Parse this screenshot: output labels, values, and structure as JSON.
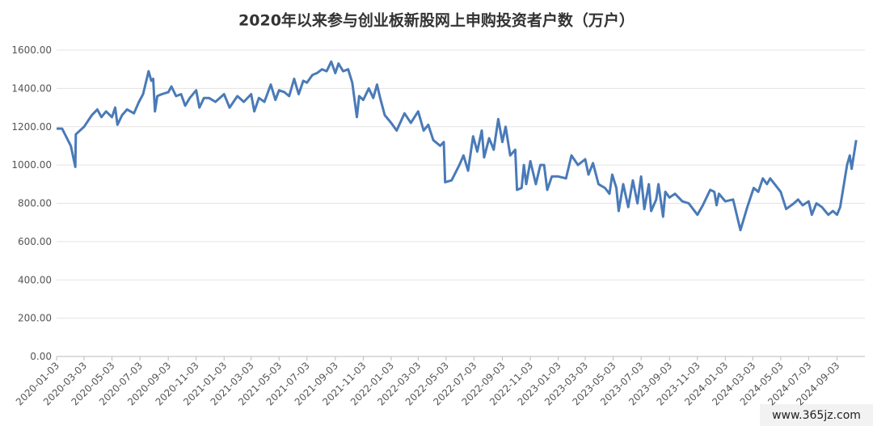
{
  "chart_data": {
    "type": "line",
    "title": "2020年以来参与创业板新股网上申购投资者户数（万户）",
    "watermark": "www.365jz.com",
    "color": "#4a7ab8",
    "x": [
      "2020-01-03",
      "2020-01-15",
      "2020-02-03",
      "2020-02-13",
      "2020-02-14",
      "2020-03-03",
      "2020-03-20",
      "2020-04-01",
      "2020-04-10",
      "2020-04-20",
      "2020-05-03",
      "2020-05-10",
      "2020-05-15",
      "2020-05-25",
      "2020-06-05",
      "2020-06-20",
      "2020-07-01",
      "2020-07-10",
      "2020-07-20",
      "2020-07-22",
      "2020-07-28",
      "2020-08-01",
      "2020-08-05",
      "2020-08-10",
      "2020-08-20",
      "2020-09-03",
      "2020-09-10",
      "2020-09-20",
      "2020-10-01",
      "2020-10-10",
      "2020-10-20",
      "2020-11-03",
      "2020-11-10",
      "2020-11-20",
      "2020-12-01",
      "2020-12-15",
      "2021-01-03",
      "2021-01-15",
      "2021-02-01",
      "2021-02-15",
      "2021-03-03",
      "2021-03-10",
      "2021-03-20",
      "2021-04-01",
      "2021-04-15",
      "2021-04-25",
      "2021-05-03",
      "2021-05-15",
      "2021-05-25",
      "2021-06-05",
      "2021-06-15",
      "2021-06-25",
      "2021-07-03",
      "2021-07-15",
      "2021-07-25",
      "2021-08-05",
      "2021-08-15",
      "2021-08-25",
      "2021-09-03",
      "2021-09-10",
      "2021-09-20",
      "2021-10-01",
      "2021-10-10",
      "2021-10-20",
      "2021-10-25",
      "2021-11-03",
      "2021-11-15",
      "2021-11-25",
      "2021-12-03",
      "2021-12-10",
      "2021-12-20",
      "2022-01-03",
      "2022-01-15",
      "2022-02-01",
      "2022-02-15",
      "2022-03-03",
      "2022-03-15",
      "2022-03-25",
      "2022-04-05",
      "2022-04-20",
      "2022-04-28",
      "2022-05-01",
      "2022-05-15",
      "2022-06-01",
      "2022-06-10",
      "2022-06-20",
      "2022-07-01",
      "2022-07-10",
      "2022-07-20",
      "2022-07-25",
      "2022-08-05",
      "2022-08-15",
      "2022-08-25",
      "2022-09-03",
      "2022-09-10",
      "2022-09-20",
      "2022-10-01",
      "2022-10-05",
      "2022-10-15",
      "2022-10-20",
      "2022-10-25",
      "2022-11-03",
      "2022-11-15",
      "2022-11-25",
      "2022-12-03",
      "2022-12-10",
      "2022-12-20",
      "2023-01-03",
      "2023-01-20",
      "2023-02-01",
      "2023-02-15",
      "2023-03-03",
      "2023-03-10",
      "2023-03-20",
      "2023-04-01",
      "2023-04-15",
      "2023-04-25",
      "2023-05-01",
      "2023-05-10",
      "2023-05-15",
      "2023-05-25",
      "2023-06-05",
      "2023-06-15",
      "2023-06-25",
      "2023-07-03",
      "2023-07-10",
      "2023-07-20",
      "2023-07-25",
      "2023-08-05",
      "2023-08-10",
      "2023-08-20",
      "2023-08-25",
      "2023-09-03",
      "2023-09-15",
      "2023-10-01",
      "2023-10-15",
      "2023-11-03",
      "2023-11-15",
      "2023-12-01",
      "2023-12-10",
      "2023-12-15",
      "2023-12-20",
      "2024-01-03",
      "2024-01-20",
      "2024-02-05",
      "2024-02-20",
      "2024-03-05",
      "2024-03-15",
      "2024-03-25",
      "2024-04-03",
      "2024-04-10",
      "2024-05-03",
      "2024-05-15",
      "2024-06-01",
      "2024-06-10",
      "2024-06-20",
      "2024-07-03",
      "2024-07-10",
      "2024-07-20",
      "2024-08-01",
      "2024-08-15",
      "2024-08-25",
      "2024-09-03",
      "2024-09-10",
      "2024-09-25",
      "2024-10-01",
      "2024-10-05",
      "2024-10-15"
    ],
    "values": [
      1190,
      1190,
      1100,
      990,
      1160,
      1200,
      1260,
      1290,
      1250,
      1280,
      1250,
      1300,
      1210,
      1260,
      1290,
      1270,
      1330,
      1370,
      1470,
      1490,
      1440,
      1450,
      1280,
      1360,
      1370,
      1380,
      1410,
      1360,
      1370,
      1310,
      1350,
      1390,
      1300,
      1350,
      1350,
      1330,
      1370,
      1300,
      1360,
      1330,
      1370,
      1280,
      1350,
      1330,
      1420,
      1340,
      1390,
      1380,
      1360,
      1450,
      1370,
      1440,
      1430,
      1470,
      1480,
      1500,
      1490,
      1540,
      1480,
      1530,
      1490,
      1500,
      1430,
      1250,
      1360,
      1340,
      1400,
      1350,
      1420,
      1350,
      1260,
      1220,
      1180,
      1270,
      1220,
      1280,
      1180,
      1210,
      1130,
      1100,
      1120,
      910,
      920,
      1000,
      1050,
      970,
      1150,
      1070,
      1180,
      1040,
      1140,
      1080,
      1240,
      1120,
      1200,
      1050,
      1080,
      870,
      880,
      1000,
      900,
      1020,
      900,
      1000,
      1000,
      870,
      940,
      940,
      930,
      1050,
      1000,
      1030,
      950,
      1010,
      900,
      880,
      850,
      950,
      880,
      760,
      900,
      780,
      920,
      800,
      940,
      770,
      900,
      760,
      820,
      900,
      730,
      860,
      830,
      850,
      810,
      800,
      740,
      790,
      870,
      860,
      790,
      850,
      810,
      820,
      660,
      780,
      880,
      860,
      930,
      900,
      930,
      860,
      770,
      800,
      820,
      790,
      810,
      740,
      800,
      780,
      740,
      760,
      740,
      780,
      1000,
      1050,
      980,
      1130
    ],
    "xlim": [
      "2020-01-03",
      "2024-11-03"
    ],
    "xticks": [
      "2020-01-03",
      "2020-03-03",
      "2020-05-03",
      "2020-07-03",
      "2020-09-03",
      "2020-11-03",
      "2021-01-03",
      "2021-03-03",
      "2021-05-03",
      "2021-07-03",
      "2021-09-03",
      "2021-11-03",
      "2022-01-03",
      "2022-03-03",
      "2022-05-03",
      "2022-07-03",
      "2022-09-03",
      "2022-11-03",
      "2023-01-03",
      "2023-03-03",
      "2023-05-03",
      "2023-07-03",
      "2023-09-03",
      "2023-11-03",
      "2024-01-03",
      "2024-03-03",
      "2024-05-03",
      "2024-07-03",
      "2024-09-03"
    ],
    "ylim": [
      0,
      1600
    ],
    "yticks": [
      {
        "value": 0,
        "label": "0.00"
      },
      {
        "value": 200,
        "label": "200.00"
      },
      {
        "value": 400,
        "label": "400.00"
      },
      {
        "value": 600,
        "label": "600.00"
      },
      {
        "value": 800,
        "label": "800.00"
      },
      {
        "value": 1000,
        "label": "1000.00"
      },
      {
        "value": 1200,
        "label": "1200.00"
      },
      {
        "value": 1400,
        "label": "1400.00"
      },
      {
        "value": 1600,
        "label": "1600.00"
      }
    ],
    "grid": true
  }
}
